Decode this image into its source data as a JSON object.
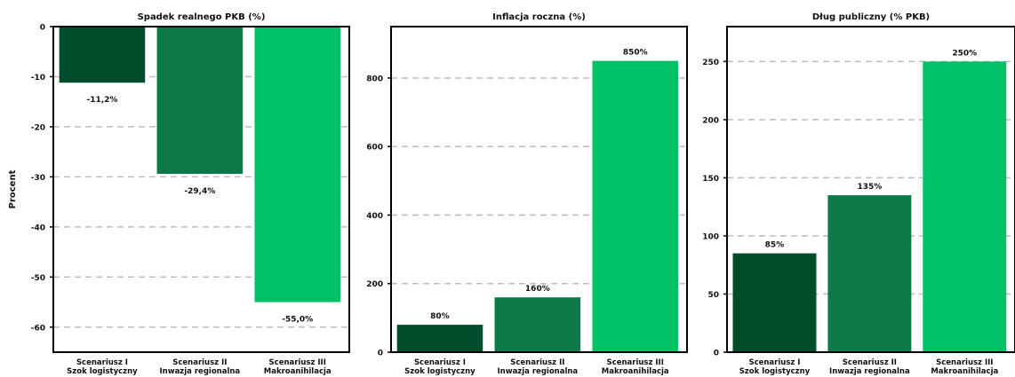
{
  "chart_data": [
    {
      "type": "bar",
      "title": "Spadek realnego PKB (%)",
      "ylabel": "Procent",
      "xlabel": "",
      "categories": [
        [
          "Scenariusz I",
          "Szok logistyczny"
        ],
        [
          "Scenariusz II",
          "Inwazja regionalna"
        ],
        [
          "Scenariusz III",
          "Makroanihilacja"
        ]
      ],
      "values": [
        -11.2,
        -29.4,
        -55.0
      ],
      "data_labels": [
        "-11,2%",
        "-29,4%",
        "-55,0%"
      ],
      "ylim": [
        -65,
        0
      ],
      "yticks": [
        0,
        -10,
        -20,
        -30,
        -40,
        -50,
        -60
      ],
      "ytick_labels": [
        "0",
        "-10",
        "-20",
        "-30",
        "-40",
        "-50",
        "-60"
      ],
      "colors": [
        "#004d2b",
        "#0f7a48",
        "#00c164"
      ],
      "grid": true
    },
    {
      "type": "bar",
      "title": "Inflacja roczna (%)",
      "ylabel": "",
      "xlabel": "",
      "categories": [
        [
          "Scenariusz I",
          "Szok logistyczny"
        ],
        [
          "Scenariusz II",
          "Inwazja regionalna"
        ],
        [
          "Scenariusz III",
          "Makroanihilacja"
        ]
      ],
      "values": [
        80,
        160,
        850
      ],
      "data_labels": [
        "80%",
        "160%",
        "850%"
      ],
      "ylim": [
        0,
        950
      ],
      "yticks": [
        0,
        200,
        400,
        600,
        800
      ],
      "ytick_labels": [
        "0",
        "200",
        "400",
        "600",
        "800"
      ],
      "colors": [
        "#004d2b",
        "#0f7a48",
        "#00c164"
      ],
      "grid": true
    },
    {
      "type": "bar",
      "title": "Dług publiczny (% PKB)",
      "ylabel": "",
      "xlabel": "",
      "categories": [
        [
          "Scenariusz I",
          "Szok logistyczny"
        ],
        [
          "Scenariusz II",
          "Inwazja regionalna"
        ],
        [
          "Scenariusz III",
          "Makroanihilacja"
        ]
      ],
      "values": [
        85,
        135,
        250
      ],
      "data_labels": [
        "85%",
        "135%",
        "250%"
      ],
      "ylim": [
        0,
        280
      ],
      "yticks": [
        0,
        50,
        100,
        150,
        200,
        250
      ],
      "ytick_labels": [
        "0",
        "50",
        "100",
        "150",
        "200",
        "250"
      ],
      "colors": [
        "#004d2b",
        "#0f7a48",
        "#00c164"
      ],
      "grid": true
    }
  ]
}
